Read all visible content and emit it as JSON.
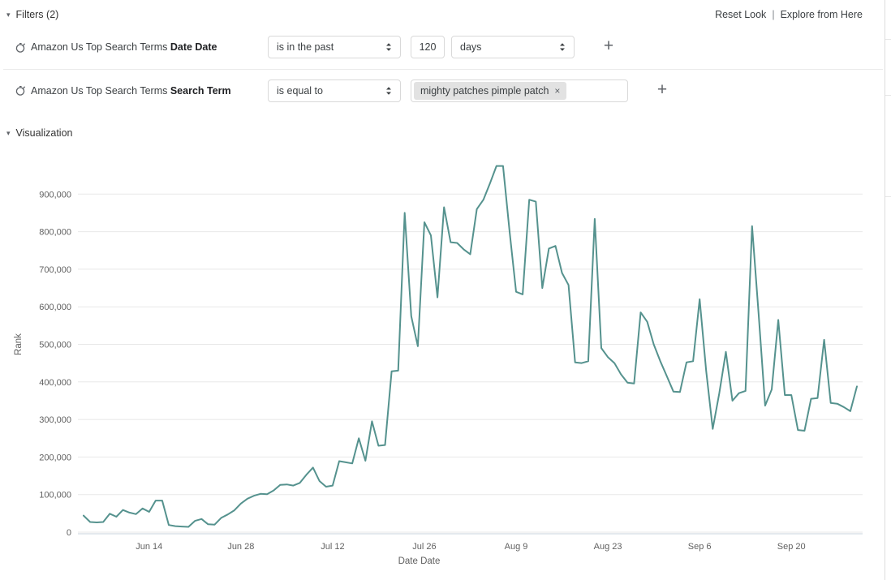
{
  "header": {
    "filters_label": "Filters (2)",
    "reset_link": "Reset Look",
    "link_divider": "|",
    "explore_link": "Explore from Here"
  },
  "filters": [
    {
      "field_prefix": "Amazon Us Top Search Terms ",
      "field_name": "Date Date",
      "operator": "is in the past",
      "value": "120",
      "unit": "days"
    },
    {
      "field_prefix": "Amazon Us Top Search Terms ",
      "field_name": "Search Term",
      "operator": "is equal to",
      "tag": "mighty patches pimple patch",
      "tag_remove": "×"
    }
  ],
  "visualization": {
    "section_label": "Visualization"
  },
  "icons": {
    "collapse_arrow": "▾",
    "plus": "+"
  },
  "chart_data": {
    "type": "line",
    "title": "",
    "xlabel": "Date Date",
    "ylabel": "Rank",
    "grid": "horizontal",
    "legend": "none",
    "ylim": [
      0,
      1000000
    ],
    "y_ticks": [
      0,
      100000,
      200000,
      300000,
      400000,
      500000,
      600000,
      700000,
      800000,
      900000
    ],
    "x_tick_labels": [
      "Jun 14",
      "Jun 28",
      "Jul 12",
      "Jul 26",
      "Aug 9",
      "Aug 23",
      "Sep 6",
      "Sep 20"
    ],
    "x_tick_indices": [
      10,
      24,
      38,
      52,
      66,
      80,
      94,
      108
    ],
    "line_color": "#55928e",
    "series": [
      {
        "name": "Rank",
        "values": [
          44000,
          27000,
          26000,
          27000,
          49000,
          41000,
          59000,
          52000,
          48000,
          63000,
          54000,
          84000,
          84000,
          19000,
          16000,
          15000,
          14000,
          30000,
          35000,
          21000,
          20000,
          38000,
          47000,
          58000,
          76000,
          89000,
          97000,
          102000,
          101000,
          111000,
          126000,
          127000,
          124000,
          131000,
          153000,
          172000,
          136000,
          121000,
          124000,
          189000,
          186000,
          183000,
          250000,
          190000,
          295000,
          230000,
          232000,
          428000,
          430000,
          850000,
          575000,
          495000,
          825000,
          790000,
          625000,
          865000,
          772000,
          770000,
          753000,
          740000,
          860000,
          885000,
          928000,
          975000,
          975000,
          800000,
          640000,
          633000,
          885000,
          880000,
          650000,
          755000,
          762000,
          690000,
          658000,
          452000,
          450000,
          455000,
          834000,
          490000,
          466000,
          450000,
          420000,
          398000,
          396000,
          585000,
          560000,
          500000,
          455000,
          415000,
          374000,
          373000,
          452000,
          455000,
          620000,
          430000,
          275000,
          370000,
          480000,
          350000,
          370000,
          376000,
          815000,
          580000,
          337000,
          380000,
          565000,
          365000,
          365000,
          272000,
          270000,
          355000,
          357000,
          512000,
          344000,
          342000,
          333000,
          322000,
          388000
        ]
      }
    ]
  }
}
